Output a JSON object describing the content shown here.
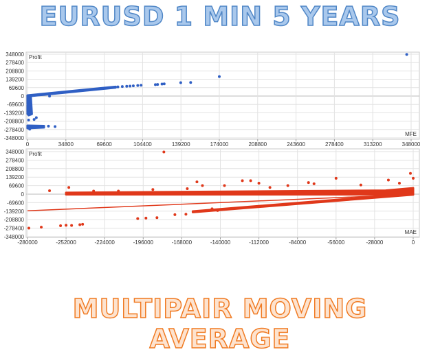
{
  "titles": {
    "top": "EURUSD 1 MIN 5 YEARS",
    "bottom": "MULTIPAIR MOVING AVERAGE"
  },
  "chart_data": [
    {
      "type": "scatter",
      "name": "mfe",
      "color": "#2f5fc4",
      "ylabel": "Profit",
      "xlabel": "MFE",
      "xlim": [
        0,
        348000
      ],
      "ylim": [
        -348000,
        348000
      ],
      "xticks": [
        "0",
        "34800",
        "69600",
        "104400",
        "139200",
        "174000",
        "208800",
        "243600",
        "278400",
        "313200",
        "348000"
      ],
      "xtick_values": [
        0,
        34800,
        69600,
        104400,
        139200,
        174000,
        208800,
        243600,
        278400,
        313200,
        348000
      ],
      "yticks": [
        "348000",
        "278400",
        "208800",
        "139200",
        "69600",
        "0",
        "-69600",
        "-139200",
        "-208800",
        "-278400",
        "-348000"
      ],
      "ytick_values": [
        348000,
        278400,
        208800,
        139200,
        69600,
        0,
        -69600,
        -139200,
        -208800,
        -278400,
        -348000
      ],
      "grid": true,
      "dense_regions": [
        [
          [
            0,
            -3000
          ],
          [
            0,
            6000
          ],
          [
            80000,
            78000
          ],
          [
            80000,
            70000
          ]
        ],
        [
          [
            0,
            0
          ],
          [
            3000,
            0
          ],
          [
            4000,
            -150000
          ],
          [
            1000,
            -160000
          ],
          [
            0,
            -150000
          ]
        ],
        [
          [
            0,
            -245000
          ],
          [
            15000,
            -248000
          ],
          [
            15000,
            -262000
          ],
          [
            0,
            -268000
          ]
        ]
      ],
      "points": [
        [
          82000,
          76000
        ],
        [
          86000,
          79000
        ],
        [
          90000,
          81000
        ],
        [
          93000,
          83000
        ],
        [
          96000,
          85000
        ],
        [
          100000,
          88000
        ],
        [
          103000,
          90000
        ],
        [
          116000,
          95000
        ],
        [
          118000,
          96000
        ],
        [
          122000,
          100000
        ],
        [
          124000,
          101000
        ],
        [
          139000,
          111000
        ],
        [
          148000,
          113000
        ],
        [
          174000,
          162000
        ],
        [
          344000,
          346000
        ],
        [
          20000,
          -1000
        ],
        [
          1000,
          -200000
        ],
        [
          6000,
          -195000
        ],
        [
          25000,
          -254000
        ],
        [
          19000,
          -250000
        ],
        [
          2000,
          -275000
        ],
        [
          8000,
          -180000
        ]
      ]
    },
    {
      "type": "scatter",
      "name": "mae",
      "color": "#e0381a",
      "ylabel": "Profit",
      "xlabel": "MAE",
      "xlim": [
        -280000,
        0
      ],
      "ylim": [
        -348000,
        348000
      ],
      "xticks": [
        "-280000",
        "-252000",
        "-224000",
        "-196000",
        "-168000",
        "-140000",
        "-112000",
        "-84000",
        "-56000",
        "-28000",
        "0"
      ],
      "xtick_values": [
        -280000,
        -252000,
        -224000,
        -196000,
        -168000,
        -140000,
        -112000,
        -84000,
        -56000,
        -28000,
        0
      ],
      "yticks": [
        "348000",
        "278400",
        "208800",
        "139200",
        "69600",
        "0",
        "-69600",
        "-139200",
        "-208800",
        "-278400",
        "-348000"
      ],
      "ytick_values": [
        348000,
        278400,
        208800,
        139200,
        69600,
        0,
        -69600,
        -139200,
        -208800,
        -278400,
        -348000
      ],
      "grid": true,
      "trendline": [
        [
          -280000,
          -136000
        ],
        [
          0,
          -2000
        ]
      ],
      "dense_regions": [
        [
          [
            -252000,
            -3000
          ],
          [
            -252000,
            12000
          ],
          [
            -20000,
            30000
          ],
          [
            0,
            50000
          ],
          [
            0,
            -3000
          ]
        ],
        [
          [
            -160000,
            -140000
          ],
          [
            -160000,
            -148000
          ],
          [
            0,
            -4000
          ],
          [
            0,
            4000
          ]
        ]
      ],
      "points": [
        [
          -279000,
          -278000
        ],
        [
          -270000,
          -270000
        ],
        [
          -264000,
          28000
        ],
        [
          -256000,
          -258000
        ],
        [
          -252000,
          -255000
        ],
        [
          -248000,
          -256000
        ],
        [
          -242000,
          -250000
        ],
        [
          -240000,
          -246000
        ],
        [
          -250000,
          55000
        ],
        [
          -232000,
          25000
        ],
        [
          -214000,
          25000
        ],
        [
          -200000,
          -200000
        ],
        [
          -194000,
          -196000
        ],
        [
          -186000,
          -192000
        ],
        [
          -189000,
          38000
        ],
        [
          -181000,
          345000
        ],
        [
          -173000,
          -168000
        ],
        [
          -165000,
          -164000
        ],
        [
          -164000,
          45000
        ],
        [
          -157000,
          100000
        ],
        [
          -153000,
          70000
        ],
        [
          -146000,
          -120000
        ],
        [
          -142000,
          -134000
        ],
        [
          -137000,
          70000
        ],
        [
          -124000,
          110000
        ],
        [
          -118000,
          110000
        ],
        [
          -112000,
          90000
        ],
        [
          -104000,
          55000
        ],
        [
          -91000,
          70000
        ],
        [
          -76000,
          95000
        ],
        [
          -72000,
          85000
        ],
        [
          -56000,
          130000
        ],
        [
          -38000,
          75000
        ],
        [
          -18000,
          115000
        ],
        [
          -10000,
          90000
        ],
        [
          -2000,
          170000
        ],
        [
          0,
          130000
        ]
      ]
    }
  ]
}
